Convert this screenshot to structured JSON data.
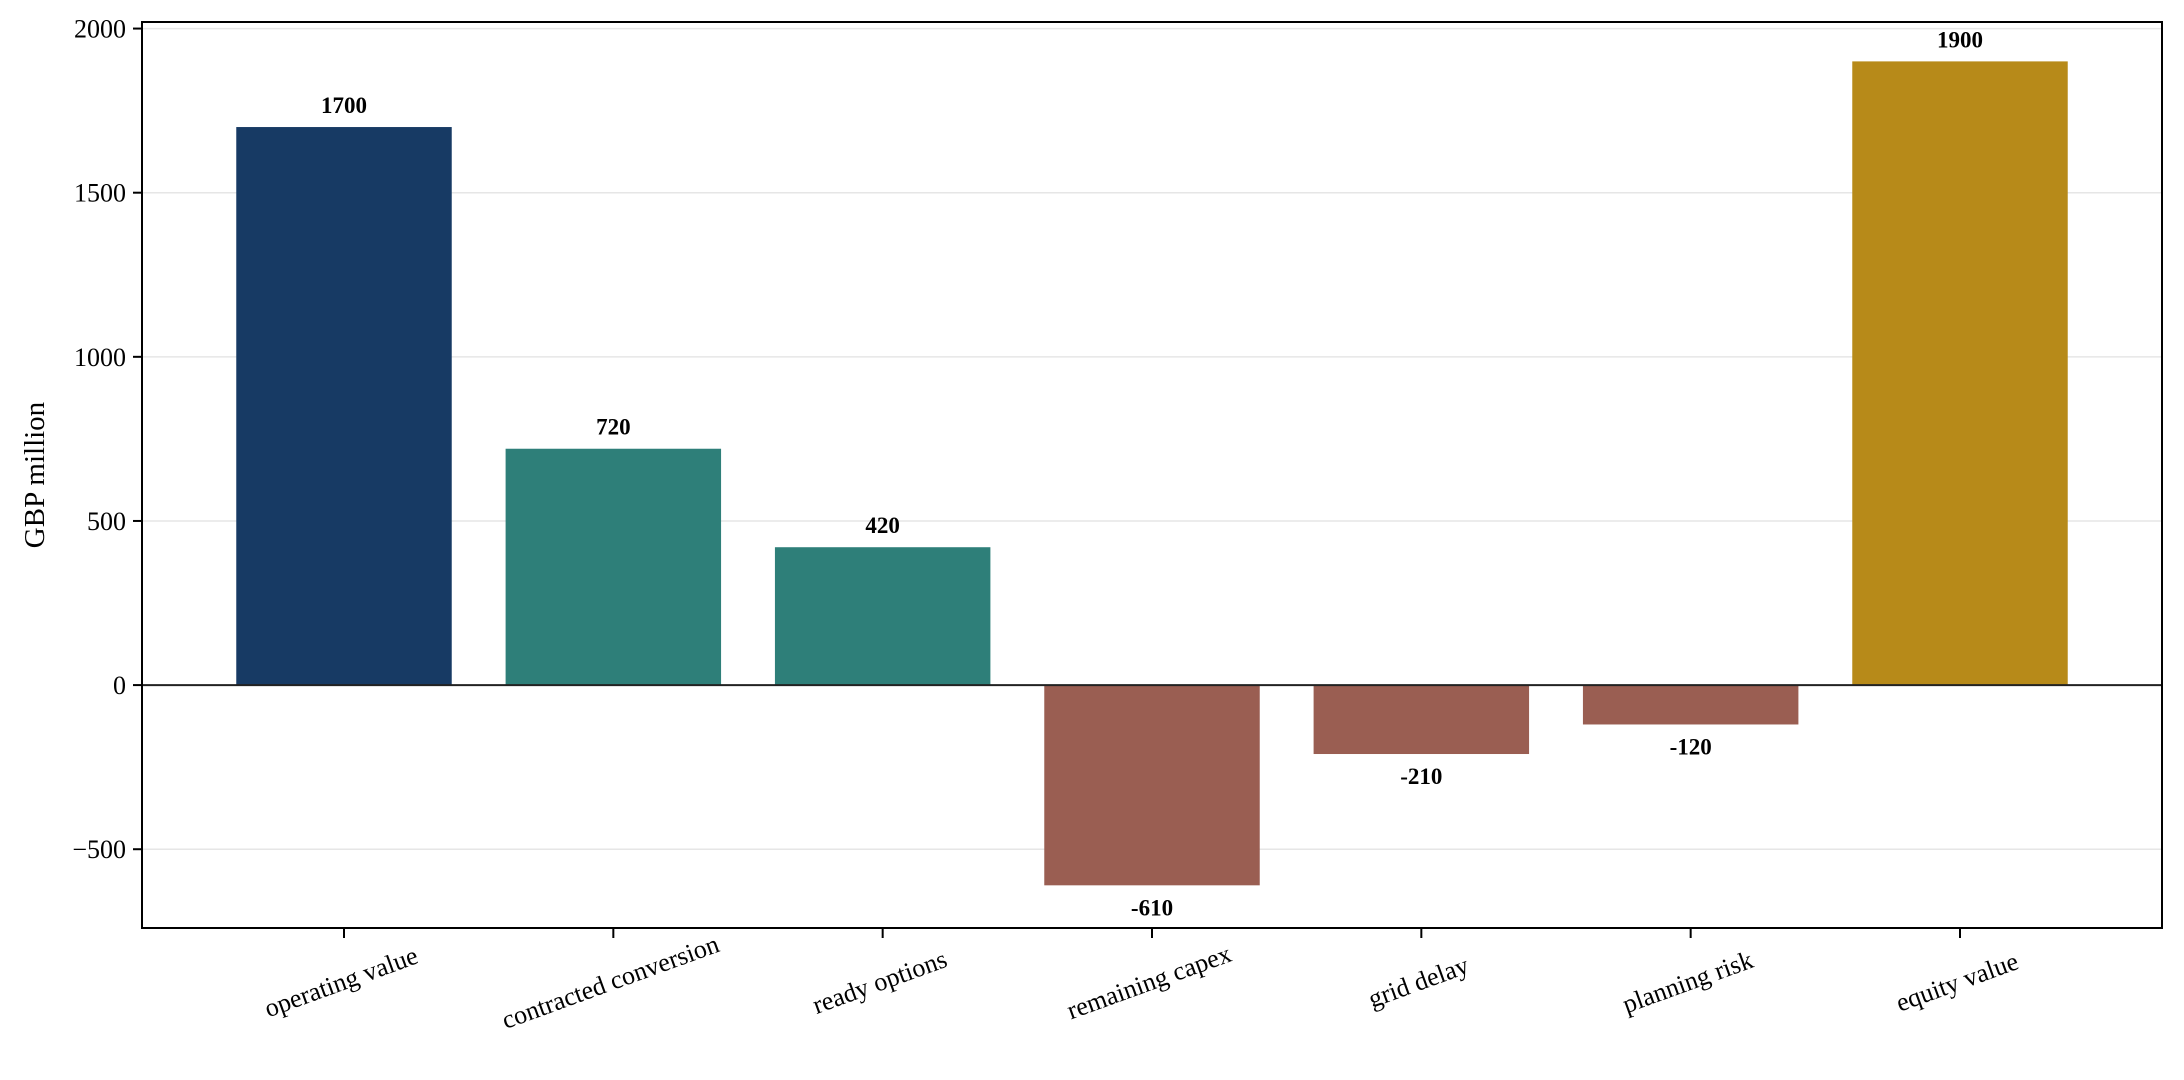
{
  "chart_data": {
    "type": "bar",
    "categories": [
      "operating value",
      "contracted conversion",
      "ready options",
      "remaining capex",
      "grid delay",
      "planning risk",
      "equity value"
    ],
    "values": [
      1700,
      720,
      420,
      -610,
      -210,
      -120,
      1900
    ],
    "data_labels": [
      "1700",
      "720",
      "420",
      "-610",
      "-210",
      "-120",
      "1900"
    ],
    "colors": [
      "#173a64",
      "#2e7f79",
      "#2e7f79",
      "#9a5e52",
      "#9a5e52",
      "#9a5e52",
      "#b78a19"
    ],
    "title": "",
    "xlabel": "",
    "ylabel": "GBP million",
    "ylim": [
      -740,
      2020
    ],
    "yticks": [
      -500,
      0,
      500,
      1000,
      1500,
      2000
    ],
    "ytick_labels": [
      "−500",
      "0",
      "500",
      "1000",
      "1500",
      "2000"
    ],
    "grid": "horizontal",
    "zero_line": true,
    "legend": "none"
  }
}
